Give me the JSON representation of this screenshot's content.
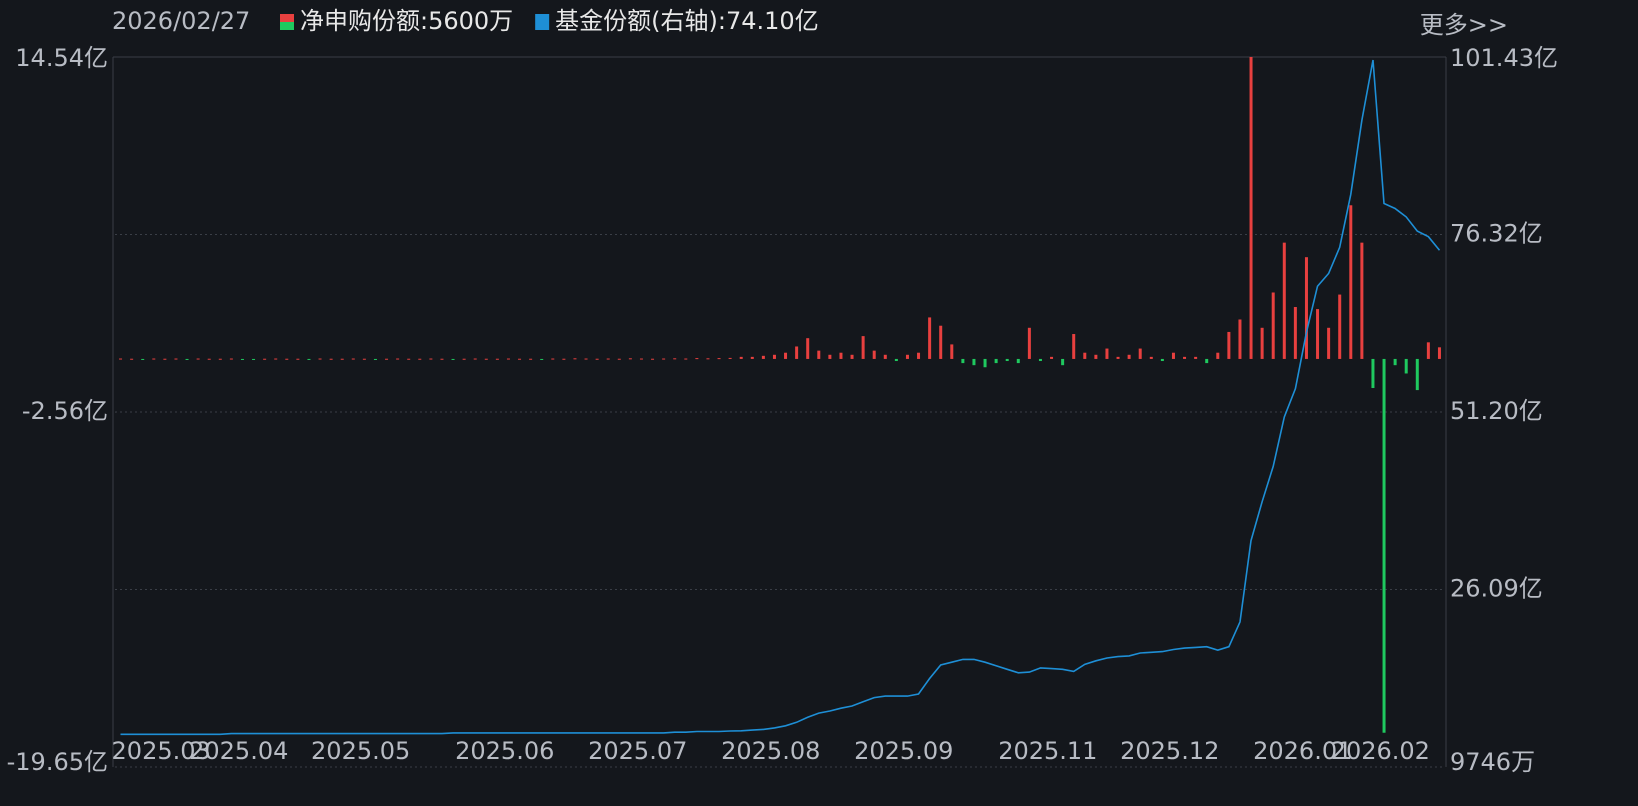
{
  "chart_data": {
    "type": "bar_line",
    "date": "2026/02/27",
    "more_link": "更多>>",
    "categories": [
      "2025.03",
      null,
      null,
      null,
      null,
      null,
      null,
      "2025.04",
      null,
      null,
      null,
      null,
      null,
      null,
      null,
      null,
      null,
      null,
      "2025.05",
      null,
      null,
      null,
      null,
      null,
      null,
      null,
      null,
      null,
      null,
      null,
      null,
      "2025.06",
      null,
      null,
      null,
      null,
      null,
      null,
      null,
      null,
      null,
      null,
      null,
      "2025.07",
      null,
      null,
      null,
      null,
      null,
      null,
      null,
      null,
      null,
      null,
      null,
      "2025.08",
      null,
      null,
      null,
      null,
      null,
      null,
      null,
      null,
      null,
      null,
      null,
      "2025.09",
      null,
      null,
      null,
      null,
      null,
      null,
      null,
      null,
      null,
      null,
      null,
      null,
      "2025.11",
      null,
      null,
      null,
      null,
      null,
      null,
      null,
      null,
      null,
      null,
      "2025.12",
      null,
      null,
      null,
      null,
      null,
      null,
      null,
      null,
      null,
      null,
      null,
      "2026.01",
      null,
      null,
      null,
      null,
      null,
      null,
      "2026.02",
      null,
      null,
      null,
      null,
      null,
      null,
      null,
      null,
      null
    ],
    "series": [
      {
        "name": "净申购份额",
        "legend_value": ":5600万",
        "color": "#e8403f",
        "negative_color": "#1fc95f",
        "values": [
          0.02,
          0.01,
          -0.01,
          0.02,
          0.01,
          0.02,
          -0.01,
          0.02,
          0.01,
          0.01,
          0.02,
          -0.01,
          -0.02,
          0.01,
          0.02,
          0.01,
          0.01,
          -0.01,
          0.02,
          0.01,
          0.01,
          0.02,
          0.01,
          -0.01,
          0.01,
          0.02,
          0.01,
          0.01,
          0.02,
          0.01,
          -0.01,
          0.01,
          0.02,
          0.01,
          0.01,
          0.02,
          0.01,
          0.01,
          -0.01,
          0.02,
          0.01,
          0.03,
          0.02,
          0.01,
          0.02,
          0.01,
          0.03,
          0.02,
          0.01,
          0.02,
          0.03,
          0.02,
          0.04,
          0.03,
          0.04,
          0.05,
          0.1,
          0.1,
          0.15,
          0.2,
          0.3,
          0.6,
          1.0,
          0.4,
          0.2,
          0.3,
          0.2,
          1.1,
          0.4,
          0.2,
          -0.1,
          0.2,
          0.3,
          2.0,
          1.6,
          0.7,
          -0.2,
          -0.3,
          -0.4,
          -0.2,
          -0.1,
          -0.2,
          1.5,
          -0.1,
          0.1,
          -0.3,
          1.2,
          0.3,
          0.2,
          0.5,
          0.1,
          0.2,
          0.5,
          0.1,
          -0.1,
          0.3,
          0.1,
          0.1,
          -0.2,
          0.3,
          1.3,
          1.9,
          14.54,
          1.5,
          3.2,
          5.6,
          2.5,
          4.9,
          2.4,
          1.5,
          3.1,
          7.4,
          5.6,
          -1.4,
          -18.0,
          -0.3,
          -0.7,
          -1.5,
          0.8,
          0.56
        ]
      },
      {
        "name": "基金份额(右轴)",
        "legend_value": ":74.10亿",
        "axis": "y2",
        "color": "#1e8fd6",
        "values": [
          5.6,
          5.6,
          5.6,
          5.6,
          5.6,
          5.6,
          5.6,
          5.6,
          5.6,
          5.6,
          5.7,
          5.7,
          5.7,
          5.7,
          5.7,
          5.7,
          5.7,
          5.7,
          5.7,
          5.7,
          5.7,
          5.7,
          5.7,
          5.7,
          5.7,
          5.7,
          5.7,
          5.7,
          5.7,
          5.7,
          5.8,
          5.8,
          5.8,
          5.8,
          5.8,
          5.8,
          5.8,
          5.8,
          5.8,
          5.8,
          5.8,
          5.8,
          5.8,
          5.8,
          5.8,
          5.8,
          5.8,
          5.8,
          5.8,
          5.8,
          5.9,
          5.9,
          6.0,
          6.0,
          6.0,
          6.07,
          6.1,
          6.2,
          6.3,
          6.5,
          6.8,
          7.3,
          8.0,
          8.6,
          8.9,
          9.3,
          9.6,
          10.2,
          10.8,
          11.0,
          11.0,
          11.0,
          11.3,
          13.5,
          15.4,
          15.8,
          16.2,
          16.2,
          15.8,
          15.3,
          14.8,
          14.3,
          14.4,
          15.0,
          14.9,
          14.8,
          14.5,
          15.5,
          16.0,
          16.4,
          16.6,
          16.7,
          17.1,
          17.2,
          17.3,
          17.6,
          17.8,
          17.9,
          18.0,
          17.5,
          18.0,
          21.5,
          33.0,
          38.5,
          43.5,
          50.5,
          54.5,
          62.5,
          69.0,
          70.8,
          74.5,
          82.0,
          92.5,
          101.0,
          80.7,
          80.0,
          78.8,
          76.8,
          76.0,
          74.1
        ]
      }
    ],
    "ylim": [
      -19.65,
      14.54
    ],
    "yticks": [
      {
        "value": 14.54,
        "label": "14.54亿"
      },
      {
        "value": -2.56,
        "label": "-2.56亿"
      },
      {
        "value": -19.65,
        "label": "-19.65亿"
      }
    ],
    "y2lim": [
      0.9746,
      101.43
    ],
    "y2ticks": [
      {
        "value": 101.43,
        "label": "101.43亿"
      },
      {
        "value": 76.32,
        "label": "76.32亿"
      },
      {
        "value": 51.2,
        "label": "51.20亿"
      },
      {
        "value": 26.09,
        "label": "26.09亿"
      },
      {
        "value": 0.9746,
        "label": "9746万"
      }
    ],
    "grid": true
  }
}
